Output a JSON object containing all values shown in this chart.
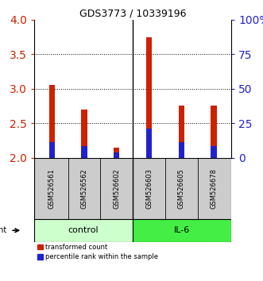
{
  "title": "GDS3773 / 10339196",
  "samples": [
    "GSM526561",
    "GSM526562",
    "GSM526602",
    "GSM526603",
    "GSM526605",
    "GSM526678"
  ],
  "red_tops": [
    3.05,
    2.7,
    2.15,
    3.75,
    2.75,
    2.75
  ],
  "blue_tops": [
    2.22,
    2.17,
    2.07,
    2.42,
    2.22,
    2.17
  ],
  "bar_base": 2.0,
  "ylim": [
    2.0,
    4.0
  ],
  "y_left_ticks": [
    2,
    2.5,
    3,
    3.5,
    4
  ],
  "y_right_labels": [
    "0",
    "25",
    "50",
    "75",
    "100%"
  ],
  "red_color": "#cc2200",
  "blue_color": "#2222cc",
  "bar_width": 0.18,
  "ctrl_bg": "#ccffcc",
  "il6_bg": "#44ee44",
  "sample_box_color": "#cccccc",
  "legend_red": "transformed count",
  "legend_blue": "percentile rank within the sample",
  "ylabel_left_color": "#cc2200",
  "ylabel_right_color": "#2222cc"
}
